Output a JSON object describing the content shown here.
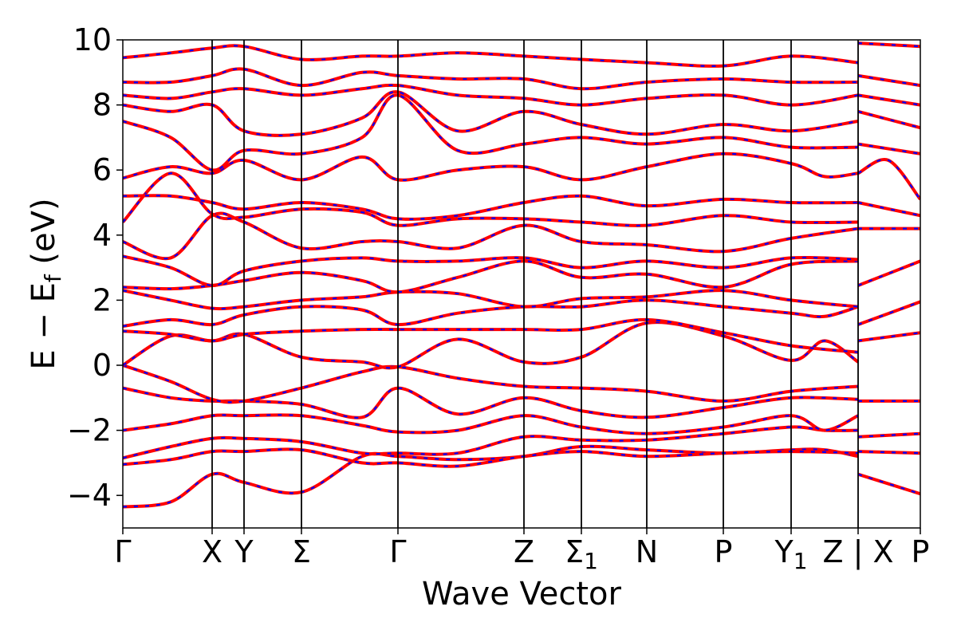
{
  "chart_data": {
    "type": "line",
    "title": "",
    "xlabel": "Wave Vector",
    "ylabel": "E − E_f (eV)",
    "ylabel_parts": {
      "main": "E − E",
      "sub": "f",
      "unit": " (eV)"
    },
    "ylim": [
      -5,
      10
    ],
    "yticks": [
      -4,
      -2,
      0,
      2,
      4,
      6,
      8,
      10
    ],
    "ytick_labels": [
      "−4",
      "−2",
      "0",
      "2",
      "4",
      "6",
      "8",
      "10"
    ],
    "xlim": [
      0,
      1
    ],
    "high_symmetry_points": [
      {
        "label": "Γ",
        "sub": "",
        "x": 0.0
      },
      {
        "label": "X",
        "sub": "",
        "x": 0.112
      },
      {
        "label": "Y",
        "sub": "",
        "x": 0.152
      },
      {
        "label": "Σ",
        "sub": "",
        "x": 0.224
      },
      {
        "label": "Γ",
        "sub": "",
        "x": 0.345
      },
      {
        "label": "Z",
        "sub": "",
        "x": 0.503
      },
      {
        "label": "Σ",
        "sub": "1",
        "x": 0.575
      },
      {
        "label": "N",
        "sub": "",
        "x": 0.657
      },
      {
        "label": "P",
        "sub": "",
        "x": 0.753
      },
      {
        "label": "Y",
        "sub": "1",
        "x": 0.838
      },
      {
        "label": "Z | X",
        "sub": "",
        "x": 0.922
      },
      {
        "label": "P",
        "sub": "",
        "x": 1.0
      }
    ],
    "grid": false,
    "legend": "none",
    "series_style": {
      "primary_color": "#ff0000",
      "overlay_color": "#0000ff",
      "overlay_dash": "dashed"
    },
    "bands": [
      [
        [
          0,
          -4.35
        ],
        [
          0.06,
          -4.2
        ],
        [
          0.112,
          -3.35
        ],
        [
          0.152,
          -3.6
        ],
        [
          0.224,
          -3.9
        ],
        [
          0.3,
          -2.8
        ],
        [
          0.345,
          -2.8
        ],
        [
          0.42,
          -2.9
        ],
        [
          0.503,
          -2.8
        ],
        [
          0.575,
          -2.5
        ],
        [
          0.657,
          -2.6
        ],
        [
          0.753,
          -2.7
        ],
        [
          0.838,
          -2.6
        ],
        [
          0.88,
          -2.6
        ],
        [
          0.922,
          -2.8
        ]
      ],
      [
        [
          0,
          -3.05
        ],
        [
          0.06,
          -2.9
        ],
        [
          0.112,
          -2.65
        ],
        [
          0.152,
          -2.65
        ],
        [
          0.224,
          -2.6
        ],
        [
          0.3,
          -3.0
        ],
        [
          0.345,
          -3.0
        ],
        [
          0.42,
          -3.1
        ],
        [
          0.503,
          -2.8
        ],
        [
          0.575,
          -2.65
        ],
        [
          0.657,
          -2.8
        ],
        [
          0.753,
          -2.7
        ],
        [
          0.838,
          -2.65
        ],
        [
          0.922,
          -2.7
        ]
      ],
      [
        [
          0,
          -2.85
        ],
        [
          0.06,
          -2.5
        ],
        [
          0.112,
          -2.25
        ],
        [
          0.152,
          -2.25
        ],
        [
          0.224,
          -2.35
        ],
        [
          0.3,
          -2.7
        ],
        [
          0.345,
          -2.7
        ],
        [
          0.42,
          -2.7
        ],
        [
          0.503,
          -2.2
        ],
        [
          0.575,
          -2.3
        ],
        [
          0.657,
          -2.3
        ],
        [
          0.753,
          -2.1
        ],
        [
          0.838,
          -1.9
        ],
        [
          0.88,
          -2.0
        ],
        [
          0.922,
          -2.0
        ]
      ],
      [
        [
          0,
          -2.0
        ],
        [
          0.06,
          -1.8
        ],
        [
          0.112,
          -1.55
        ],
        [
          0.152,
          -1.55
        ],
        [
          0.224,
          -1.55
        ],
        [
          0.3,
          -1.85
        ],
        [
          0.345,
          -2.05
        ],
        [
          0.42,
          -2.0
        ],
        [
          0.503,
          -1.55
        ],
        [
          0.575,
          -1.9
        ],
        [
          0.657,
          -2.1
        ],
        [
          0.753,
          -1.9
        ],
        [
          0.838,
          -1.55
        ],
        [
          0.88,
          -2.0
        ],
        [
          0.922,
          -1.55
        ]
      ],
      [
        [
          0,
          -0.7
        ],
        [
          0.06,
          -1.0
        ],
        [
          0.112,
          -1.1
        ],
        [
          0.152,
          -1.1
        ],
        [
          0.224,
          -1.2
        ],
        [
          0.3,
          -1.6
        ],
        [
          0.345,
          -0.7
        ],
        [
          0.42,
          -1.5
        ],
        [
          0.503,
          -1.0
        ],
        [
          0.575,
          -1.4
        ],
        [
          0.657,
          -1.6
        ],
        [
          0.753,
          -1.3
        ],
        [
          0.838,
          -1.0
        ],
        [
          0.922,
          -1.05
        ]
      ],
      [
        [
          0,
          0.0
        ],
        [
          0.06,
          -0.5
        ],
        [
          0.112,
          -1.05
        ],
        [
          0.152,
          -1.1
        ],
        [
          0.224,
          -0.7
        ],
        [
          0.3,
          -0.2
        ],
        [
          0.345,
          -0.05
        ],
        [
          0.42,
          -0.4
        ],
        [
          0.503,
          -0.65
        ],
        [
          0.575,
          -0.7
        ],
        [
          0.657,
          -0.8
        ],
        [
          0.753,
          -1.1
        ],
        [
          0.838,
          -0.8
        ],
        [
          0.922,
          -0.65
        ]
      ],
      [
        [
          0,
          0.0
        ],
        [
          0.06,
          0.9
        ],
        [
          0.112,
          0.75
        ],
        [
          0.152,
          0.95
        ],
        [
          0.224,
          0.25
        ],
        [
          0.3,
          0.1
        ],
        [
          0.345,
          -0.05
        ],
        [
          0.42,
          0.8
        ],
        [
          0.503,
          0.1
        ],
        [
          0.575,
          0.25
        ],
        [
          0.657,
          1.3
        ],
        [
          0.753,
          0.9
        ],
        [
          0.838,
          0.15
        ],
        [
          0.88,
          0.75
        ],
        [
          0.922,
          0.1
        ]
      ],
      [
        [
          0,
          1.05
        ],
        [
          0.06,
          0.95
        ],
        [
          0.112,
          0.75
        ],
        [
          0.152,
          0.95
        ],
        [
          0.224,
          1.05
        ],
        [
          0.3,
          1.1
        ],
        [
          0.345,
          1.1
        ],
        [
          0.42,
          1.1
        ],
        [
          0.503,
          1.1
        ],
        [
          0.575,
          1.1
        ],
        [
          0.657,
          1.4
        ],
        [
          0.753,
          1.0
        ],
        [
          0.838,
          0.6
        ],
        [
          0.922,
          0.4
        ]
      ],
      [
        [
          0,
          1.2
        ],
        [
          0.06,
          1.4
        ],
        [
          0.112,
          1.25
        ],
        [
          0.152,
          1.55
        ],
        [
          0.224,
          1.8
        ],
        [
          0.3,
          1.7
        ],
        [
          0.345,
          1.25
        ],
        [
          0.42,
          1.6
        ],
        [
          0.503,
          1.8
        ],
        [
          0.575,
          1.8
        ],
        [
          0.657,
          2.0
        ],
        [
          0.753,
          1.8
        ],
        [
          0.838,
          1.6
        ],
        [
          0.88,
          1.5
        ],
        [
          0.922,
          1.8
        ]
      ],
      [
        [
          0,
          2.3
        ],
        [
          0.06,
          2.0
        ],
        [
          0.112,
          1.75
        ],
        [
          0.152,
          1.8
        ],
        [
          0.224,
          2.0
        ],
        [
          0.3,
          2.1
        ],
        [
          0.345,
          2.25
        ],
        [
          0.42,
          2.2
        ],
        [
          0.503,
          1.8
        ],
        [
          0.575,
          2.05
        ],
        [
          0.657,
          2.1
        ],
        [
          0.753,
          2.3
        ],
        [
          0.838,
          2.0
        ],
        [
          0.922,
          1.8
        ]
      ],
      [
        [
          0,
          2.4
        ],
        [
          0.06,
          2.35
        ],
        [
          0.112,
          2.45
        ],
        [
          0.152,
          2.6
        ],
        [
          0.224,
          2.85
        ],
        [
          0.3,
          2.6
        ],
        [
          0.345,
          2.25
        ],
        [
          0.42,
          2.7
        ],
        [
          0.503,
          3.2
        ],
        [
          0.575,
          2.7
        ],
        [
          0.657,
          2.8
        ],
        [
          0.753,
          2.4
        ],
        [
          0.838,
          3.1
        ],
        [
          0.922,
          3.2
        ]
      ],
      [
        [
          0,
          3.35
        ],
        [
          0.06,
          3.0
        ],
        [
          0.112,
          2.45
        ],
        [
          0.152,
          2.9
        ],
        [
          0.224,
          3.2
        ],
        [
          0.3,
          3.3
        ],
        [
          0.345,
          3.2
        ],
        [
          0.42,
          3.2
        ],
        [
          0.503,
          3.3
        ],
        [
          0.575,
          3.0
        ],
        [
          0.657,
          3.2
        ],
        [
          0.753,
          3.0
        ],
        [
          0.838,
          3.3
        ],
        [
          0.922,
          3.25
        ]
      ],
      [
        [
          0,
          3.8
        ],
        [
          0.06,
          3.3
        ],
        [
          0.112,
          4.6
        ],
        [
          0.152,
          4.4
        ],
        [
          0.224,
          3.6
        ],
        [
          0.3,
          3.8
        ],
        [
          0.345,
          3.8
        ],
        [
          0.42,
          3.6
        ],
        [
          0.503,
          4.3
        ],
        [
          0.575,
          3.8
        ],
        [
          0.657,
          3.7
        ],
        [
          0.753,
          3.5
        ],
        [
          0.838,
          3.9
        ],
        [
          0.922,
          4.2
        ]
      ],
      [
        [
          0,
          4.4
        ],
        [
          0.06,
          5.9
        ],
        [
          0.112,
          4.65
        ],
        [
          0.152,
          4.55
        ],
        [
          0.224,
          4.8
        ],
        [
          0.3,
          4.7
        ],
        [
          0.345,
          4.3
        ],
        [
          0.42,
          4.5
        ],
        [
          0.503,
          4.5
        ],
        [
          0.575,
          4.4
        ],
        [
          0.657,
          4.3
        ],
        [
          0.753,
          4.6
        ],
        [
          0.838,
          4.4
        ],
        [
          0.922,
          4.4
        ]
      ],
      [
        [
          0,
          5.2
        ],
        [
          0.06,
          5.2
        ],
        [
          0.112,
          5.0
        ],
        [
          0.152,
          4.8
        ],
        [
          0.224,
          5.0
        ],
        [
          0.3,
          4.8
        ],
        [
          0.345,
          4.5
        ],
        [
          0.42,
          4.6
        ],
        [
          0.503,
          5.0
        ],
        [
          0.575,
          5.2
        ],
        [
          0.657,
          4.9
        ],
        [
          0.753,
          5.1
        ],
        [
          0.838,
          5.0
        ],
        [
          0.922,
          5.0
        ]
      ],
      [
        [
          0,
          5.75
        ],
        [
          0.06,
          6.1
        ],
        [
          0.112,
          5.9
        ],
        [
          0.152,
          6.3
        ],
        [
          0.224,
          5.7
        ],
        [
          0.3,
          6.4
        ],
        [
          0.345,
          5.7
        ],
        [
          0.42,
          6.0
        ],
        [
          0.503,
          6.1
        ],
        [
          0.575,
          5.7
        ],
        [
          0.657,
          6.1
        ],
        [
          0.753,
          6.5
        ],
        [
          0.838,
          6.2
        ],
        [
          0.88,
          5.8
        ],
        [
          0.922,
          5.9
        ]
      ],
      [
        [
          0,
          7.5
        ],
        [
          0.06,
          7.0
        ],
        [
          0.112,
          6.0
        ],
        [
          0.152,
          6.6
        ],
        [
          0.224,
          6.5
        ],
        [
          0.3,
          7.0
        ],
        [
          0.345,
          8.3
        ],
        [
          0.42,
          6.6
        ],
        [
          0.503,
          6.8
        ],
        [
          0.575,
          7.0
        ],
        [
          0.657,
          6.8
        ],
        [
          0.753,
          7.0
        ],
        [
          0.838,
          6.7
        ],
        [
          0.922,
          6.7
        ]
      ],
      [
        [
          0,
          8.0
        ],
        [
          0.06,
          7.8
        ],
        [
          0.112,
          8.0
        ],
        [
          0.152,
          7.2
        ],
        [
          0.224,
          7.1
        ],
        [
          0.3,
          7.6
        ],
        [
          0.345,
          8.4
        ],
        [
          0.42,
          7.2
        ],
        [
          0.503,
          7.8
        ],
        [
          0.575,
          7.4
        ],
        [
          0.657,
          7.1
        ],
        [
          0.753,
          7.4
        ],
        [
          0.838,
          7.2
        ],
        [
          0.922,
          7.5
        ]
      ],
      [
        [
          0,
          8.3
        ],
        [
          0.06,
          8.2
        ],
        [
          0.112,
          8.4
        ],
        [
          0.152,
          8.5
        ],
        [
          0.224,
          8.3
        ],
        [
          0.3,
          8.5
        ],
        [
          0.345,
          8.6
        ],
        [
          0.42,
          8.3
        ],
        [
          0.503,
          8.2
        ],
        [
          0.575,
          8.0
        ],
        [
          0.657,
          8.2
        ],
        [
          0.753,
          8.3
        ],
        [
          0.838,
          8.0
        ],
        [
          0.922,
          8.3
        ]
      ],
      [
        [
          0,
          8.7
        ],
        [
          0.06,
          8.7
        ],
        [
          0.112,
          8.9
        ],
        [
          0.152,
          9.1
        ],
        [
          0.224,
          8.6
        ],
        [
          0.3,
          9.0
        ],
        [
          0.345,
          8.9
        ],
        [
          0.42,
          8.8
        ],
        [
          0.503,
          8.8
        ],
        [
          0.575,
          8.5
        ],
        [
          0.657,
          8.7
        ],
        [
          0.753,
          8.8
        ],
        [
          0.838,
          8.7
        ],
        [
          0.922,
          8.7
        ]
      ],
      [
        [
          0,
          9.45
        ],
        [
          0.06,
          9.6
        ],
        [
          0.112,
          9.75
        ],
        [
          0.152,
          9.8
        ],
        [
          0.224,
          9.4
        ],
        [
          0.3,
          9.5
        ],
        [
          0.345,
          9.5
        ],
        [
          0.42,
          9.6
        ],
        [
          0.503,
          9.5
        ],
        [
          0.575,
          9.4
        ],
        [
          0.657,
          9.3
        ],
        [
          0.753,
          9.2
        ],
        [
          0.838,
          9.5
        ],
        [
          0.922,
          9.3
        ]
      ],
      [
        [
          0.922,
          -3.35
        ],
        [
          1.0,
          -3.95
        ]
      ],
      [
        [
          0.922,
          -2.65
        ],
        [
          1.0,
          -2.7
        ]
      ],
      [
        [
          0.922,
          -2.2
        ],
        [
          1.0,
          -2.1
        ]
      ],
      [
        [
          0.922,
          -1.1
        ],
        [
          1.0,
          -1.1
        ]
      ],
      [
        [
          0.922,
          0.75
        ],
        [
          1.0,
          1.0
        ]
      ],
      [
        [
          0.922,
          1.25
        ],
        [
          1.0,
          1.95
        ]
      ],
      [
        [
          0.922,
          2.45
        ],
        [
          1.0,
          3.2
        ]
      ],
      [
        [
          0.922,
          4.2
        ],
        [
          1.0,
          4.2
        ]
      ],
      [
        [
          0.922,
          5.0
        ],
        [
          1.0,
          4.6
        ]
      ],
      [
        [
          0.922,
          5.9
        ],
        [
          0.96,
          6.3
        ],
        [
          1.0,
          5.1
        ]
      ],
      [
        [
          0.922,
          6.8
        ],
        [
          1.0,
          6.5
        ]
      ],
      [
        [
          0.922,
          7.8
        ],
        [
          1.0,
          7.3
        ]
      ],
      [
        [
          0.922,
          8.3
        ],
        [
          1.0,
          8.0
        ]
      ],
      [
        [
          0.922,
          8.9
        ],
        [
          1.0,
          8.6
        ]
      ],
      [
        [
          0.922,
          9.9
        ],
        [
          1.0,
          9.8
        ]
      ]
    ]
  }
}
